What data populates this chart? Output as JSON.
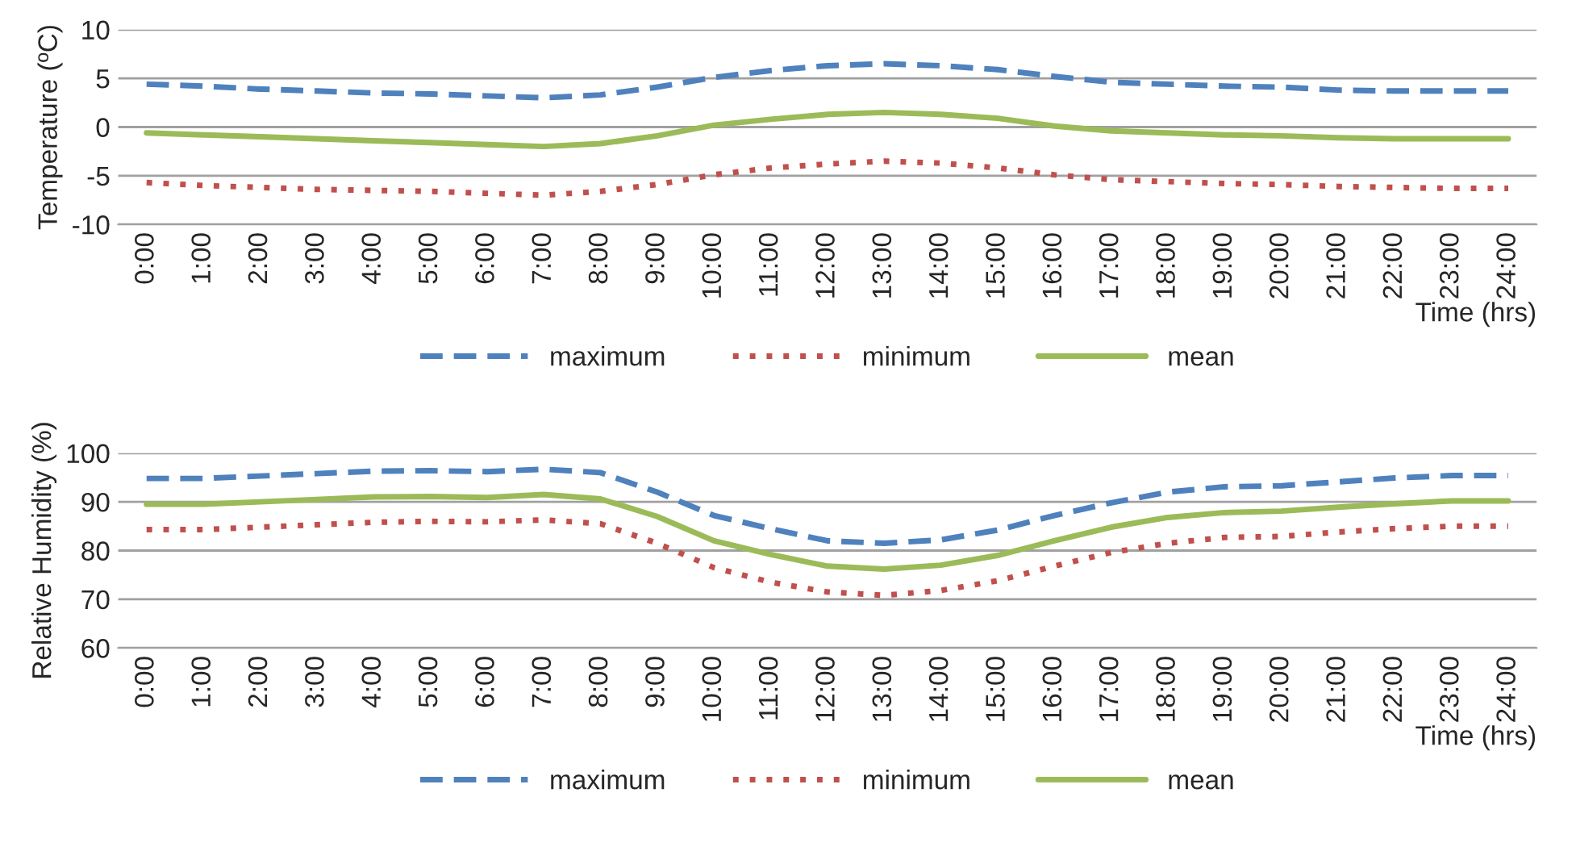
{
  "chart_data": [
    {
      "type": "line",
      "xlabel": "Time (hrs)",
      "ylabel": "Temperature (ºC)",
      "categories": [
        "0:00",
        "1:00",
        "2:00",
        "3:00",
        "4:00",
        "5:00",
        "6:00",
        "7:00",
        "8:00",
        "9:00",
        "10:00",
        "11:00",
        "12:00",
        "13:00",
        "14:00",
        "15:00",
        "16:00",
        "17:00",
        "18:00",
        "19:00",
        "20:00",
        "21:00",
        "22:00",
        "23:00",
        "24:00"
      ],
      "series": [
        {
          "name": "maximum",
          "color": "#4f81bd",
          "line_style": "dashed",
          "values": [
            4.4,
            4.2,
            3.9,
            3.7,
            3.5,
            3.4,
            3.2,
            3.0,
            3.3,
            4.1,
            5.1,
            5.8,
            6.3,
            6.5,
            6.3,
            5.9,
            5.2,
            4.6,
            4.4,
            4.2,
            4.1,
            3.8,
            3.7,
            3.7,
            3.7
          ]
        },
        {
          "name": "minimum",
          "color": "#c0504d",
          "line_style": "dotted",
          "values": [
            -5.7,
            -6.0,
            -6.2,
            -6.4,
            -6.5,
            -6.6,
            -6.8,
            -7.0,
            -6.6,
            -5.9,
            -4.9,
            -4.2,
            -3.8,
            -3.5,
            -3.7,
            -4.2,
            -4.9,
            -5.4,
            -5.6,
            -5.8,
            -5.9,
            -6.1,
            -6.2,
            -6.3,
            -6.3
          ]
        },
        {
          "name": "mean",
          "color": "#9bbb59",
          "line_style": "solid",
          "values": [
            -0.6,
            -0.8,
            -1.0,
            -1.2,
            -1.4,
            -1.6,
            -1.8,
            -2.0,
            -1.7,
            -0.9,
            0.2,
            0.8,
            1.3,
            1.5,
            1.3,
            0.9,
            0.1,
            -0.4,
            -0.6,
            -0.8,
            -0.9,
            -1.1,
            -1.2,
            -1.2,
            -1.2
          ]
        }
      ],
      "ylim": [
        -10,
        10
      ],
      "yticks": [
        -10,
        -5,
        0,
        5,
        10
      ],
      "grid": "y",
      "legend": "bottom"
    },
    {
      "type": "line",
      "xlabel": "Time (hrs)",
      "ylabel": "Relative Humidity (%)",
      "categories": [
        "0:00",
        "1:00",
        "2:00",
        "3:00",
        "4:00",
        "5:00",
        "6:00",
        "7:00",
        "8:00",
        "9:00",
        "10:00",
        "11:00",
        "12:00",
        "13:00",
        "14:00",
        "15:00",
        "16:00",
        "17:00",
        "18:00",
        "19:00",
        "20:00",
        "21:00",
        "22:00",
        "23:00",
        "24:00"
      ],
      "series": [
        {
          "name": "maximum",
          "color": "#4f81bd",
          "line_style": "dashed",
          "values": [
            94.8,
            94.8,
            95.3,
            95.8,
            96.3,
            96.4,
            96.2,
            96.7,
            96.0,
            92.0,
            87.2,
            84.5,
            82.0,
            81.5,
            82.2,
            84.2,
            87.2,
            89.8,
            92.0,
            93.1,
            93.3,
            94.1,
            94.9,
            95.4,
            95.4
          ]
        },
        {
          "name": "minimum",
          "color": "#c0504d",
          "line_style": "dotted",
          "values": [
            84.3,
            84.3,
            84.8,
            85.3,
            85.8,
            86.0,
            85.9,
            86.3,
            85.5,
            81.5,
            76.5,
            73.5,
            71.5,
            70.8,
            71.8,
            73.8,
            76.8,
            79.6,
            81.5,
            82.7,
            82.9,
            83.8,
            84.5,
            85.0,
            85.0
          ]
        },
        {
          "name": "mean",
          "color": "#9bbb59",
          "line_style": "solid",
          "values": [
            89.5,
            89.5,
            90.0,
            90.5,
            91.0,
            91.1,
            90.9,
            91.5,
            90.6,
            87.0,
            82.0,
            79.2,
            76.8,
            76.2,
            77.0,
            79.0,
            82.0,
            84.8,
            86.8,
            87.8,
            88.1,
            88.9,
            89.6,
            90.2,
            90.2
          ]
        }
      ],
      "ylim": [
        60,
        100
      ],
      "yticks": [
        60,
        70,
        80,
        90,
        100
      ],
      "grid": "y",
      "legend": "bottom"
    }
  ]
}
